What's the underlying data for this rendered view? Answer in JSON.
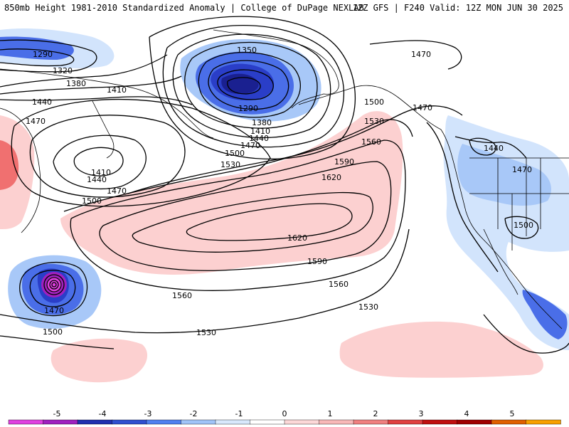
{
  "header": {
    "left_title": "850mb Height 1981-2010 Standardized Anomaly | College of DuPage NEXLAB",
    "right_title": "12Z GFS | F240 Valid: 12Z MON JUN 30 2025"
  },
  "map": {
    "contour_labels": [
      {
        "id": "c1290a",
        "text": "1290"
      },
      {
        "id": "c1320a",
        "text": "1320"
      },
      {
        "id": "c1380a",
        "text": "1380"
      },
      {
        "id": "c1410a",
        "text": "1410"
      },
      {
        "id": "c1440a",
        "text": "1440"
      },
      {
        "id": "c1470a",
        "text": "1470"
      },
      {
        "id": "c1410b",
        "text": "1410"
      },
      {
        "id": "c1440b",
        "text": "1440"
      },
      {
        "id": "c1470b",
        "text": "1470"
      },
      {
        "id": "c1500a",
        "text": "1500"
      },
      {
        "id": "c1350c",
        "text": "1350"
      },
      {
        "id": "c1290c",
        "text": "1290"
      },
      {
        "id": "c1380c",
        "text": "1380"
      },
      {
        "id": "c1410c",
        "text": "1410"
      },
      {
        "id": "c1440c",
        "text": "1440"
      },
      {
        "id": "c1470c",
        "text": "1470"
      },
      {
        "id": "c1500b",
        "text": "1500"
      },
      {
        "id": "c1530a",
        "text": "1530"
      },
      {
        "id": "c1500c",
        "text": "1500"
      },
      {
        "id": "c1530b",
        "text": "1530"
      },
      {
        "id": "c1560a",
        "text": "1560"
      },
      {
        "id": "c1590a",
        "text": "1590"
      },
      {
        "id": "c1620a",
        "text": "1620"
      },
      {
        "id": "c1620b",
        "text": "1620"
      },
      {
        "id": "c1590b",
        "text": "1590"
      },
      {
        "id": "c1560b",
        "text": "1560"
      },
      {
        "id": "c1560c",
        "text": "1560"
      },
      {
        "id": "c1530c",
        "text": "1530"
      },
      {
        "id": "c1530d",
        "text": "1530"
      },
      {
        "id": "c1470d",
        "text": "1470"
      },
      {
        "id": "c1500d",
        "text": "1500"
      },
      {
        "id": "c1470e",
        "text": "1470"
      },
      {
        "id": "c1470f",
        "text": "1470"
      },
      {
        "id": "c1440d",
        "text": "1440"
      },
      {
        "id": "c1470g",
        "text": "1470"
      },
      {
        "id": "c1500e",
        "text": "1500"
      }
    ]
  },
  "legend": {
    "ticks": [
      "-5",
      "-4",
      "-3",
      "-2",
      "-1",
      "0",
      "1",
      "2",
      "3",
      "4",
      "5"
    ],
    "colors": [
      "#e040e0",
      "#a020c0",
      "#2030b0",
      "#3050d0",
      "#5080f0",
      "#a0c4f8",
      "#d8e8fc",
      "#ffffff",
      "#fcd8d8",
      "#f8b8b8",
      "#f08080",
      "#e04040",
      "#c01010",
      "#a00000",
      "#e06000",
      "#f8a000"
    ]
  },
  "colors": {
    "neg_strong": "#2a3ec8",
    "neg_mid": "#4a6ee8",
    "neg_light": "#a8c8f8",
    "neg_faint": "#d2e4fc",
    "pos_light": "#fcd0d0",
    "pos_mid": "#f8a8a8",
    "pos_strong": "#f07070",
    "magenta": "#c040c0"
  }
}
